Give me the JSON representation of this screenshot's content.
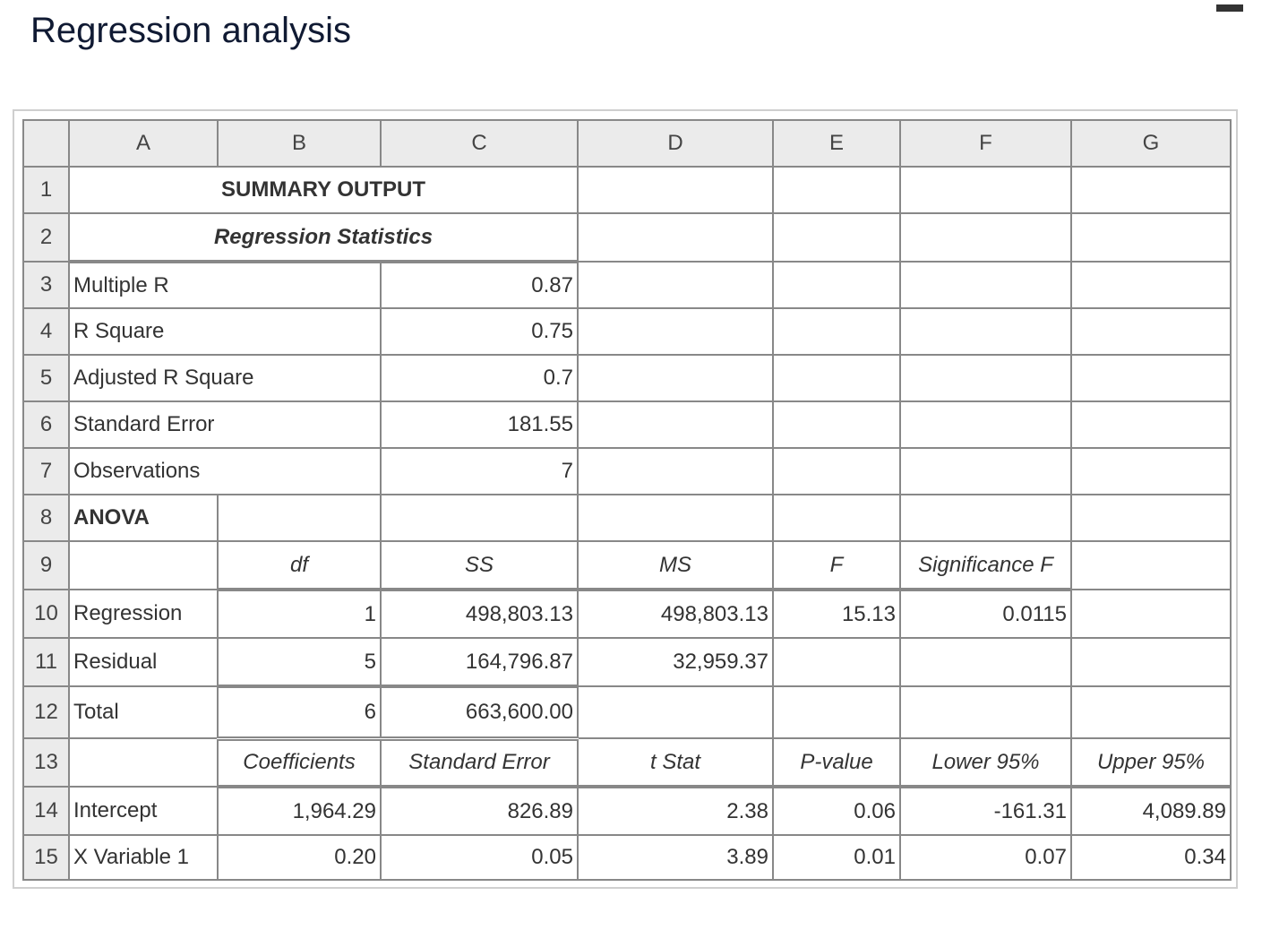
{
  "page_title": "Regression analysis",
  "columns": [
    "A",
    "B",
    "C",
    "D",
    "E",
    "F",
    "G"
  ],
  "rows": [
    "1",
    "2",
    "3",
    "4",
    "5",
    "6",
    "7",
    "8",
    "9",
    "10",
    "11",
    "12",
    "13",
    "14",
    "15"
  ],
  "summary": {
    "title": "SUMMARY OUTPUT",
    "regression_statistics_label": "Regression Statistics",
    "stats": [
      {
        "label": "Multiple R",
        "value": "0.87"
      },
      {
        "label": "R Square",
        "value": "0.75"
      },
      {
        "label": "Adjusted R Square",
        "value": "0.7"
      },
      {
        "label": "Standard Error",
        "value": "181.55"
      },
      {
        "label": "Observations",
        "value": "7"
      }
    ]
  },
  "anova": {
    "title": "ANOVA",
    "headers": {
      "df": "df",
      "ss": "SS",
      "ms": "MS",
      "f": "F",
      "sig_f": "Significance F"
    },
    "rows": [
      {
        "label": "Regression",
        "df": "1",
        "ss": "498,803.13",
        "ms": "498,803.13",
        "f": "15.13",
        "sig_f": "0.0115"
      },
      {
        "label": "Residual",
        "df": "5",
        "ss": "164,796.87",
        "ms": "32,959.37"
      },
      {
        "label": "Total",
        "df": "6",
        "ss": "663,600.00"
      }
    ]
  },
  "coefficients": {
    "headers": [
      "Coefficients",
      "Standard Error",
      "t Stat",
      "P-value",
      "Lower 95%",
      "Upper 95%"
    ],
    "rows": [
      {
        "label": "Intercept",
        "values": [
          "1,964.29",
          "826.89",
          "2.38",
          "0.06",
          "-161.31",
          "4,089.89"
        ]
      },
      {
        "label": "X Variable 1",
        "values": [
          "0.20",
          "0.05",
          "3.89",
          "0.01",
          "0.07",
          "0.34"
        ]
      }
    ]
  }
}
